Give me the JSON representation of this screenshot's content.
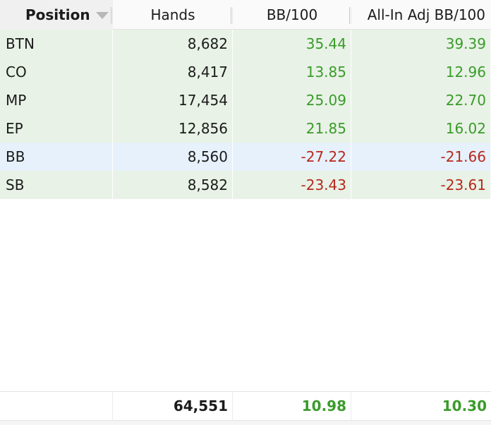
{
  "colors": {
    "positive": "#3a9b2a",
    "negative": "#b8281c",
    "row_green": "#e8f2e6",
    "row_blue": "#e6f1fb"
  },
  "header": {
    "position": "Position",
    "hands": "Hands",
    "bb100": "BB/100",
    "allin_adj": "All-In Adj BB/100",
    "sort_icon": "sort-descending-icon"
  },
  "rows": [
    {
      "position": "BTN",
      "hands": "8,682",
      "bb100": "35.44",
      "allin_adj": "39.39",
      "sign": "pos",
      "tint": "green"
    },
    {
      "position": "CO",
      "hands": "8,417",
      "bb100": "13.85",
      "allin_adj": "12.96",
      "sign": "pos",
      "tint": "green"
    },
    {
      "position": "MP",
      "hands": "17,454",
      "bb100": "25.09",
      "allin_adj": "22.70",
      "sign": "pos",
      "tint": "green"
    },
    {
      "position": "EP",
      "hands": "12,856",
      "bb100": "21.85",
      "allin_adj": "16.02",
      "sign": "pos",
      "tint": "green"
    },
    {
      "position": "BB",
      "hands": "8,560",
      "bb100": "-27.22",
      "allin_adj": "-21.66",
      "sign": "neg",
      "tint": "blue"
    },
    {
      "position": "SB",
      "hands": "8,582",
      "bb100": "-23.43",
      "allin_adj": "-23.61",
      "sign": "neg",
      "tint": "green"
    }
  ],
  "totals": {
    "position": "",
    "hands": "64,551",
    "bb100": "10.98",
    "allin_adj": "10.30"
  }
}
